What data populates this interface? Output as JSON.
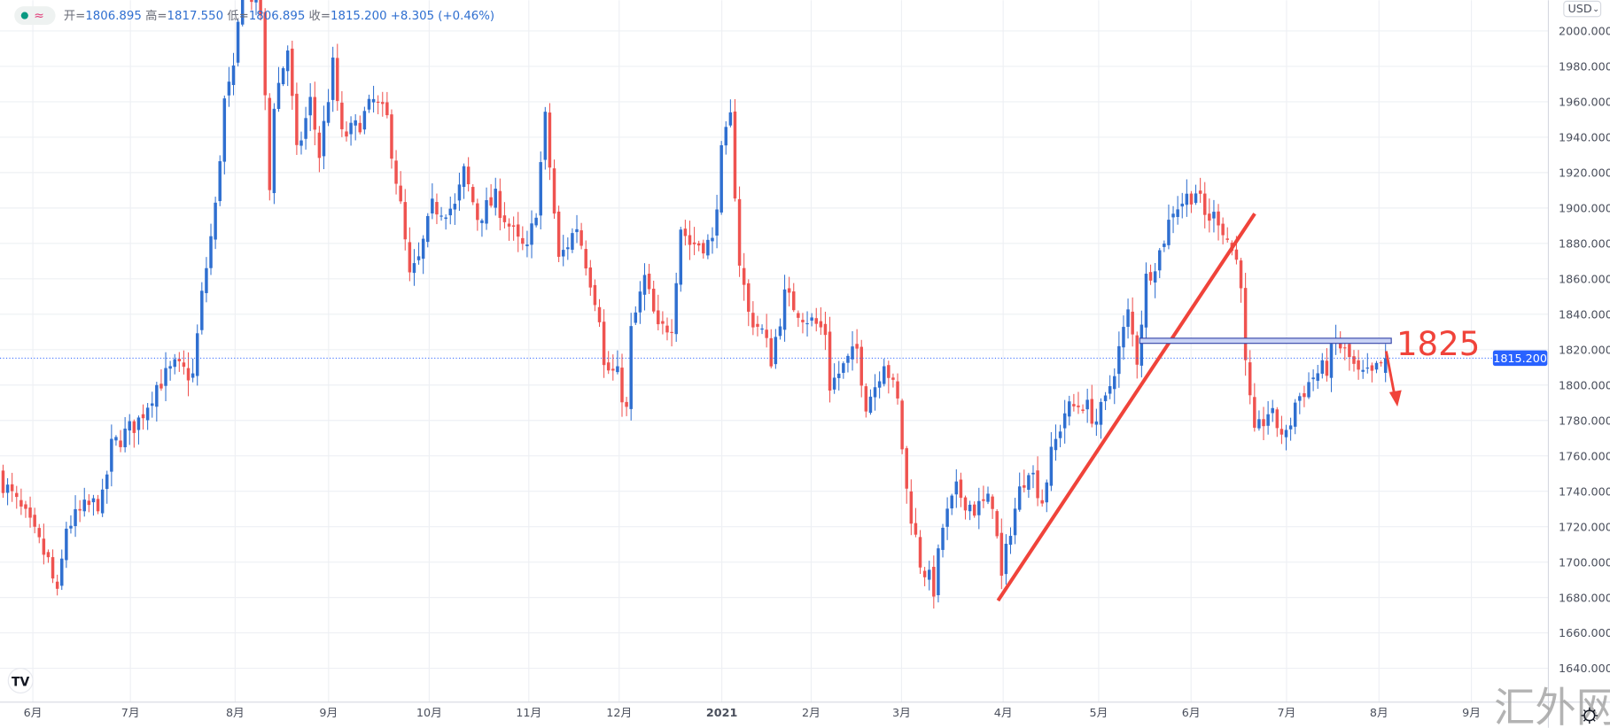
{
  "legend": {
    "open_label": "开=",
    "open": "1806.895",
    "high_label": "高=",
    "high": "1817.550",
    "low_label": "低=",
    "low": "1806.895",
    "close_label": "收=",
    "close": "1815.200",
    "change": "+8.305",
    "change_pct": "(+0.46%)",
    "wave_glyph": "≈"
  },
  "currency_button": "USD",
  "watermark": "汇外网",
  "logo": "TV",
  "annotation": {
    "level_text": "1825",
    "level": 1825
  },
  "colors": {
    "up": "#2f6fd0",
    "down": "#ef5350",
    "annotation": "#f0433a",
    "price_line": "#2962ff",
    "grid": "#eef0f4"
  },
  "chart_data": {
    "type": "candlestick",
    "title": "",
    "ylim": [
      1625,
      2017
    ],
    "y_ticks": [
      "1640.000",
      "1660.000",
      "1680.000",
      "1700.000",
      "1720.000",
      "1740.000",
      "1760.000",
      "1780.000",
      "1800.000",
      "1820.000",
      "1840.000",
      "1860.000",
      "1880.000",
      "1900.000",
      "1920.000",
      "1940.000",
      "1960.000",
      "1980.000",
      "2000.000"
    ],
    "x_ticks": [
      "6月",
      "7月",
      "8月",
      "9月",
      "10月",
      "11月",
      "12月",
      "2021",
      "2月",
      "3月",
      "4月",
      "5月",
      "6月",
      "7月",
      "8月",
      "9月"
    ],
    "last_price": "1815.200",
    "keyframes": [
      [
        0,
        1745
      ],
      [
        5,
        1725
      ],
      [
        10,
        1700
      ],
      [
        12,
        1680
      ],
      [
        14,
        1720
      ],
      [
        18,
        1730
      ],
      [
        22,
        1735
      ],
      [
        24,
        1765
      ],
      [
        30,
        1780
      ],
      [
        34,
        1800
      ],
      [
        38,
        1810
      ],
      [
        42,
        1805
      ],
      [
        44,
        1850
      ],
      [
        47,
        1900
      ],
      [
        49,
        1960
      ],
      [
        51,
        1975
      ],
      [
        53,
        2030
      ],
      [
        57,
        2010
      ],
      [
        59,
        1910
      ],
      [
        60,
        1960
      ],
      [
        63,
        1990
      ],
      [
        65,
        1930
      ],
      [
        68,
        1960
      ],
      [
        70,
        1930
      ],
      [
        73,
        1980
      ],
      [
        75,
        1940
      ],
      [
        78,
        1945
      ],
      [
        82,
        1960
      ],
      [
        85,
        1950
      ],
      [
        88,
        1900
      ],
      [
        90,
        1860
      ],
      [
        92,
        1870
      ],
      [
        95,
        1900
      ],
      [
        100,
        1900
      ],
      [
        102,
        1920
      ],
      [
        105,
        1895
      ],
      [
        109,
        1905
      ],
      [
        114,
        1880
      ],
      [
        116,
        1875
      ],
      [
        118,
        1900
      ],
      [
        120,
        1950
      ],
      [
        123,
        1870
      ],
      [
        125,
        1880
      ],
      [
        127,
        1890
      ],
      [
        130,
        1860
      ],
      [
        132,
        1840
      ],
      [
        133,
        1810
      ],
      [
        136,
        1805
      ],
      [
        138,
        1785
      ],
      [
        139,
        1830
      ],
      [
        142,
        1860
      ],
      [
        145,
        1830
      ],
      [
        148,
        1835
      ],
      [
        150,
        1890
      ],
      [
        152,
        1880
      ],
      [
        157,
        1880
      ],
      [
        159,
        1930
      ],
      [
        161,
        1950
      ],
      [
        163,
        1870
      ],
      [
        165,
        1840
      ],
      [
        168,
        1830
      ],
      [
        170,
        1815
      ],
      [
        173,
        1850
      ],
      [
        177,
        1840
      ],
      [
        182,
        1830
      ],
      [
        183,
        1800
      ],
      [
        186,
        1810
      ],
      [
        189,
        1820
      ],
      [
        191,
        1790
      ],
      [
        193,
        1800
      ],
      [
        195,
        1815
      ],
      [
        198,
        1790
      ],
      [
        200,
        1740
      ],
      [
        203,
        1700
      ],
      [
        206,
        1685
      ],
      [
        208,
        1720
      ],
      [
        211,
        1740
      ],
      [
        215,
        1730
      ],
      [
        219,
        1735
      ],
      [
        221,
        1690
      ],
      [
        223,
        1720
      ],
      [
        225,
        1740
      ],
      [
        227,
        1755
      ],
      [
        230,
        1735
      ],
      [
        232,
        1760
      ],
      [
        235,
        1785
      ],
      [
        239,
        1790
      ],
      [
        242,
        1780
      ],
      [
        244,
        1790
      ],
      [
        247,
        1820
      ],
      [
        249,
        1840
      ],
      [
        251,
        1815
      ],
      [
        253,
        1860
      ],
      [
        256,
        1875
      ],
      [
        259,
        1900
      ],
      [
        264,
        1910
      ],
      [
        266,
        1895
      ],
      [
        269,
        1895
      ],
      [
        273,
        1870
      ],
      [
        274,
        1860
      ],
      [
        275,
        1810
      ],
      [
        277,
        1770
      ],
      [
        280,
        1785
      ],
      [
        284,
        1770
      ],
      [
        286,
        1790
      ],
      [
        290,
        1805
      ],
      [
        293,
        1810
      ],
      [
        295,
        1825
      ],
      [
        298,
        1815
      ],
      [
        300,
        1805
      ],
      [
        303,
        1805
      ],
      [
        306,
        1815.2
      ]
    ]
  }
}
